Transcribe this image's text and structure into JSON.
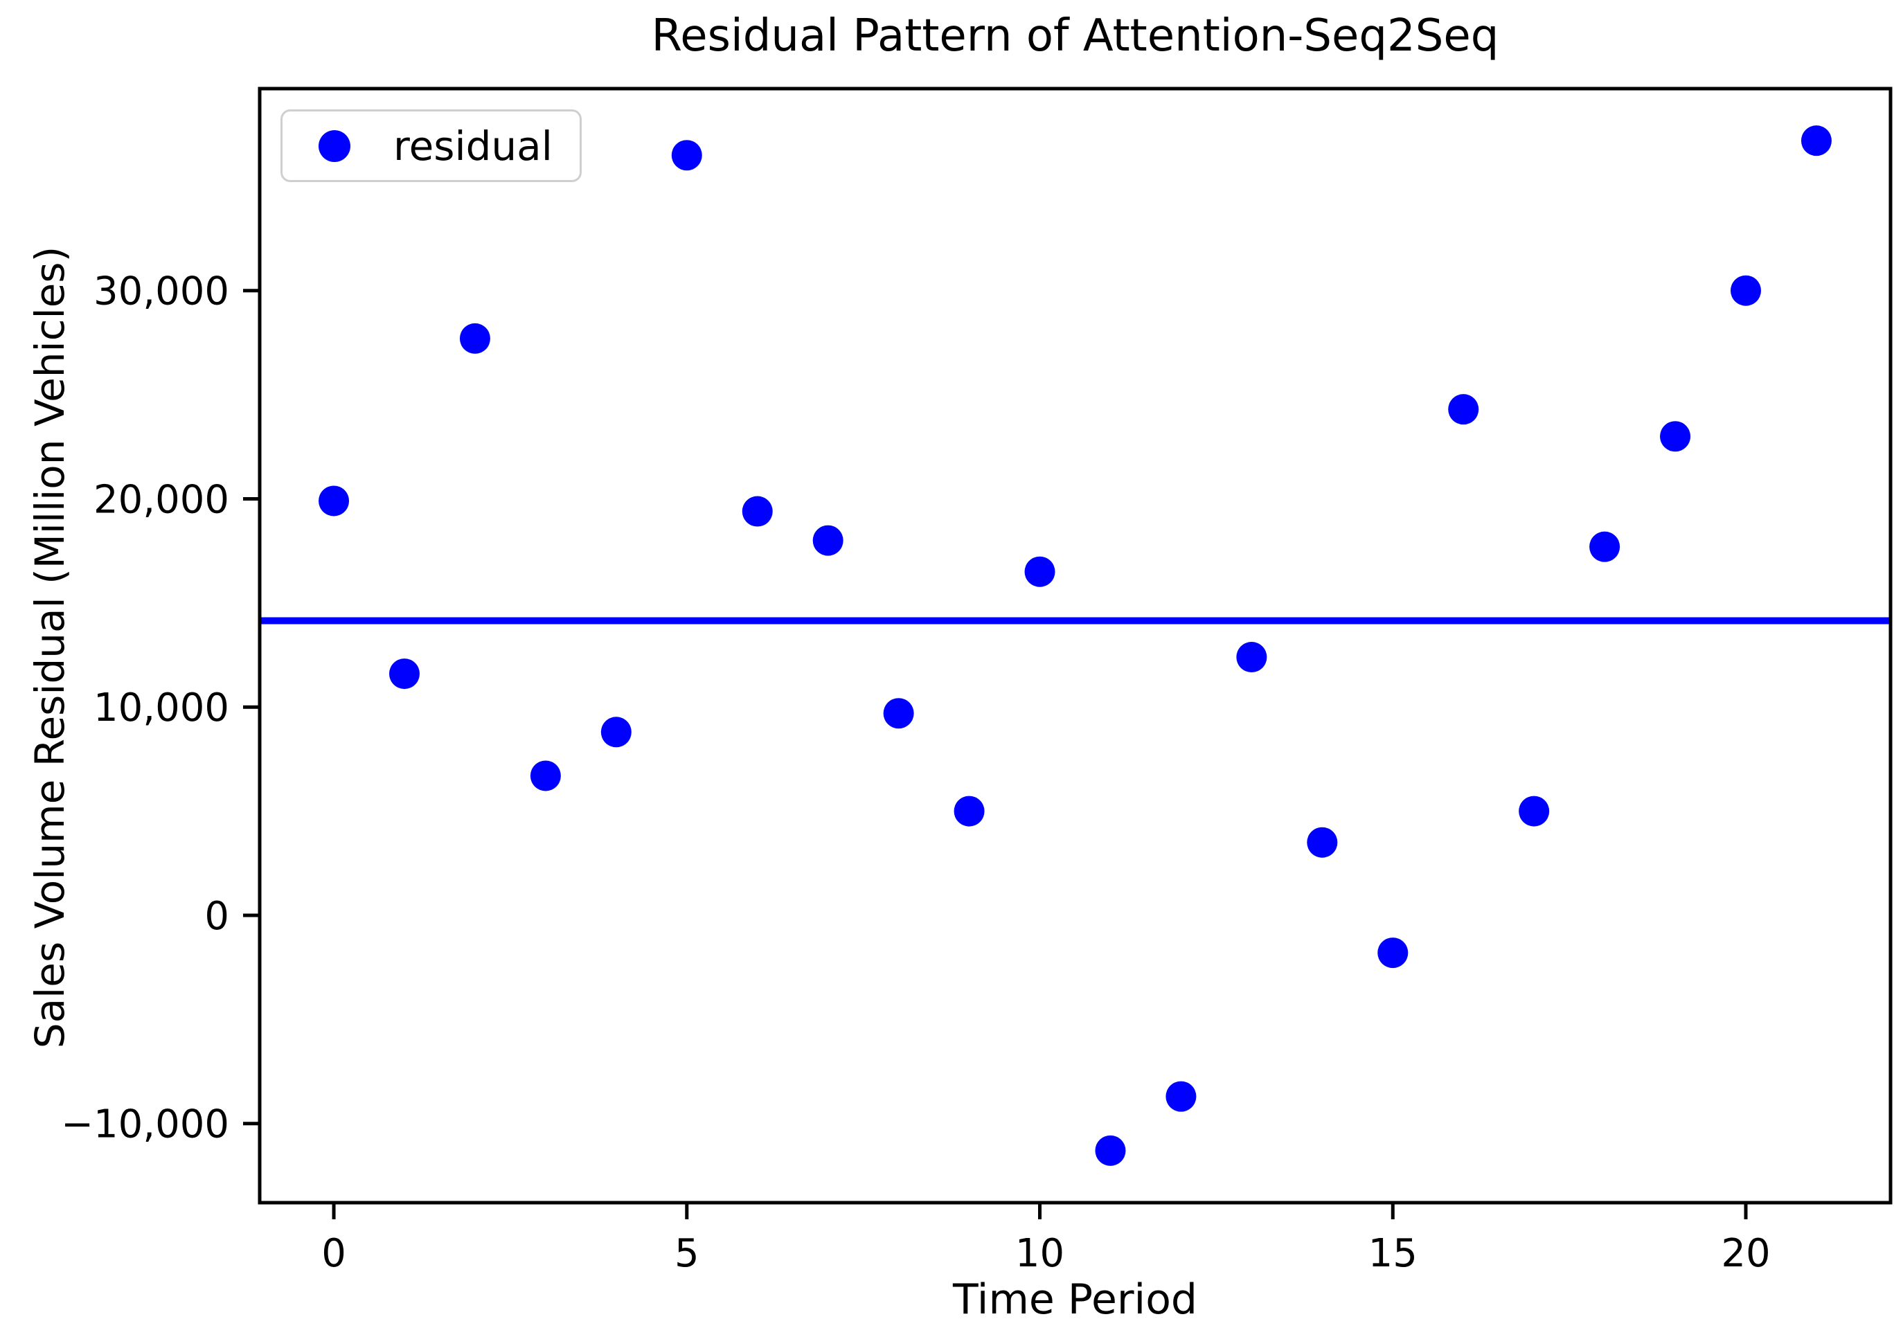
{
  "figure_title": "Residual Pattern of Attention-Seq2Seq",
  "chart_data": {
    "type": "scatter",
    "title": "Residual Pattern of Attention-Seq2Seq",
    "xlabel": "Time Period",
    "ylabel": "Sales Volume Residual (Million Vehicles)",
    "grid": false,
    "xlim": [
      -1.05,
      22.05
    ],
    "ylim": [
      -13800,
      39700
    ],
    "xticks": {
      "values": [
        0,
        5,
        10,
        15,
        20
      ],
      "labels": [
        "0",
        "5",
        "10",
        "15",
        "20"
      ]
    },
    "yticks": {
      "values": [
        30000,
        20000,
        10000,
        0,
        -10000
      ],
      "labels": [
        "30,000",
        "20,000",
        "10,000",
        "0",
        "−10,000"
      ]
    },
    "series": [
      {
        "name": "residual",
        "x": [
          0,
          1,
          2,
          3,
          4,
          5,
          6,
          7,
          8,
          9,
          10,
          11,
          12,
          13,
          14,
          15,
          16,
          17,
          18,
          19,
          20,
          21
        ],
        "y": [
          19900,
          11600,
          27700,
          6700,
          8800,
          36500,
          19400,
          18000,
          9700,
          5000,
          16500,
          -11300,
          -8700,
          12400,
          3500,
          -1800,
          24300,
          5000,
          17700,
          23000,
          30000,
          37200
        ]
      }
    ],
    "mean_line": {
      "y": 14145,
      "color": "#0000ff",
      "orientation": "horizontal"
    },
    "legend": {
      "position": "upper-left",
      "entries": [
        {
          "label": "residual",
          "marker": "circle",
          "color": "#0000ff"
        }
      ]
    },
    "colors": {
      "point": "#0000ff",
      "line": "#0000ff",
      "spine": "#000000",
      "text": "#000000",
      "legend_border": "#cfcfcf",
      "background": "#ffffff"
    },
    "marker_radius_px": 22
  }
}
